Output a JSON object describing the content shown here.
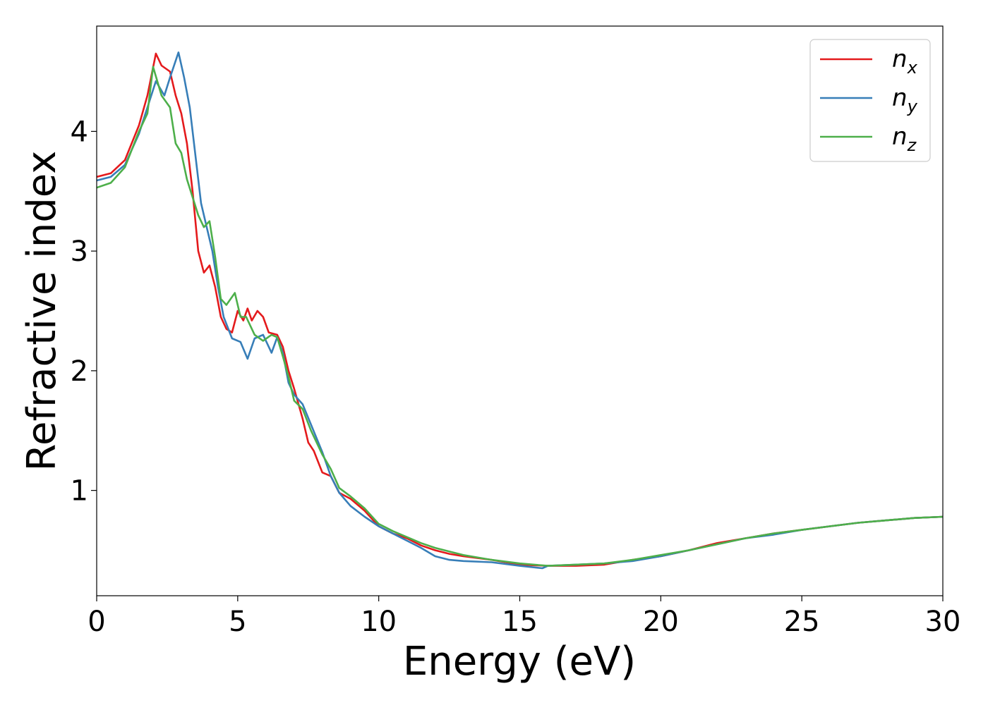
{
  "chart_data": {
    "type": "line",
    "title": "",
    "xlabel": "Energy (eV)",
    "ylabel": "Refractive index",
    "xlim": [
      0,
      30
    ],
    "ylim": [
      0.12,
      4.88
    ],
    "xticks": [
      0,
      5,
      10,
      15,
      20,
      25,
      30
    ],
    "yticks": [
      1,
      2,
      3,
      4
    ],
    "grid": false,
    "legend_position": "top-right",
    "series": [
      {
        "name": "n_x",
        "legend_base": "n",
        "legend_sub": "x",
        "color": "#e41a1c",
        "points": [
          [
            0,
            3.62
          ],
          [
            0.5,
            3.65
          ],
          [
            1.0,
            3.76
          ],
          [
            1.5,
            4.05
          ],
          [
            1.8,
            4.3
          ],
          [
            2.1,
            4.65
          ],
          [
            2.3,
            4.55
          ],
          [
            2.6,
            4.5
          ],
          [
            2.8,
            4.3
          ],
          [
            3.0,
            4.15
          ],
          [
            3.2,
            3.9
          ],
          [
            3.4,
            3.5
          ],
          [
            3.6,
            3.0
          ],
          [
            3.8,
            2.82
          ],
          [
            4.0,
            2.88
          ],
          [
            4.2,
            2.7
          ],
          [
            4.4,
            2.45
          ],
          [
            4.6,
            2.35
          ],
          [
            4.8,
            2.32
          ],
          [
            5.0,
            2.5
          ],
          [
            5.2,
            2.42
          ],
          [
            5.35,
            2.52
          ],
          [
            5.5,
            2.42
          ],
          [
            5.7,
            2.5
          ],
          [
            5.9,
            2.45
          ],
          [
            6.1,
            2.32
          ],
          [
            6.4,
            2.3
          ],
          [
            6.6,
            2.2
          ],
          [
            6.8,
            2.0
          ],
          [
            7.0,
            1.85
          ],
          [
            7.3,
            1.6
          ],
          [
            7.5,
            1.4
          ],
          [
            7.7,
            1.33
          ],
          [
            8.0,
            1.15
          ],
          [
            8.3,
            1.12
          ],
          [
            8.6,
            0.98
          ],
          [
            9.0,
            0.93
          ],
          [
            9.5,
            0.83
          ],
          [
            10.0,
            0.7
          ],
          [
            10.5,
            0.64
          ],
          [
            11,
            0.6
          ],
          [
            11.5,
            0.54
          ],
          [
            12,
            0.5
          ],
          [
            12.5,
            0.47
          ],
          [
            13,
            0.45
          ],
          [
            14,
            0.42
          ],
          [
            15,
            0.38
          ],
          [
            16,
            0.37
          ],
          [
            17,
            0.37
          ],
          [
            18,
            0.38
          ],
          [
            19,
            0.42
          ],
          [
            20,
            0.45
          ],
          [
            21,
            0.5
          ],
          [
            22,
            0.56
          ],
          [
            23,
            0.6
          ],
          [
            24,
            0.64
          ],
          [
            25,
            0.67
          ],
          [
            26,
            0.7
          ],
          [
            27,
            0.73
          ],
          [
            28,
            0.75
          ],
          [
            29,
            0.77
          ],
          [
            30,
            0.78
          ]
        ]
      },
      {
        "name": "n_y",
        "legend_base": "n",
        "legend_sub": "y",
        "color": "#377eb8",
        "points": [
          [
            0,
            3.59
          ],
          [
            0.5,
            3.62
          ],
          [
            1.0,
            3.72
          ],
          [
            1.5,
            3.98
          ],
          [
            1.8,
            4.2
          ],
          [
            2.1,
            4.42
          ],
          [
            2.4,
            4.3
          ],
          [
            2.6,
            4.45
          ],
          [
            2.9,
            4.66
          ],
          [
            3.1,
            4.45
          ],
          [
            3.3,
            4.2
          ],
          [
            3.5,
            3.8
          ],
          [
            3.7,
            3.4
          ],
          [
            3.9,
            3.2
          ],
          [
            4.1,
            3.0
          ],
          [
            4.3,
            2.7
          ],
          [
            4.5,
            2.45
          ],
          [
            4.8,
            2.27
          ],
          [
            5.1,
            2.24
          ],
          [
            5.35,
            2.1
          ],
          [
            5.6,
            2.27
          ],
          [
            5.9,
            2.3
          ],
          [
            6.2,
            2.15
          ],
          [
            6.4,
            2.28
          ],
          [
            6.6,
            2.15
          ],
          [
            6.8,
            1.9
          ],
          [
            7.0,
            1.8
          ],
          [
            7.3,
            1.72
          ],
          [
            7.6,
            1.55
          ],
          [
            8.0,
            1.32
          ],
          [
            8.3,
            1.12
          ],
          [
            8.6,
            0.98
          ],
          [
            9.0,
            0.87
          ],
          [
            9.5,
            0.78
          ],
          [
            10.0,
            0.7
          ],
          [
            10.5,
            0.64
          ],
          [
            11,
            0.58
          ],
          [
            11.5,
            0.52
          ],
          [
            12,
            0.45
          ],
          [
            12.5,
            0.42
          ],
          [
            13,
            0.41
          ],
          [
            14,
            0.4
          ],
          [
            15,
            0.37
          ],
          [
            15.8,
            0.35
          ],
          [
            16,
            0.37
          ],
          [
            17,
            0.38
          ],
          [
            18,
            0.39
          ],
          [
            19,
            0.41
          ],
          [
            20,
            0.45
          ],
          [
            21,
            0.5
          ],
          [
            22,
            0.55
          ],
          [
            23,
            0.6
          ],
          [
            24,
            0.63
          ],
          [
            25,
            0.67
          ],
          [
            26,
            0.7
          ],
          [
            27,
            0.73
          ],
          [
            28,
            0.75
          ],
          [
            29,
            0.77
          ],
          [
            30,
            0.78
          ]
        ]
      },
      {
        "name": "n_z",
        "legend_base": "n",
        "legend_sub": "z",
        "color": "#4daf4a",
        "points": [
          [
            0,
            3.53
          ],
          [
            0.5,
            3.57
          ],
          [
            1.0,
            3.7
          ],
          [
            1.5,
            4.0
          ],
          [
            1.8,
            4.15
          ],
          [
            2.0,
            4.54
          ],
          [
            2.3,
            4.3
          ],
          [
            2.6,
            4.2
          ],
          [
            2.8,
            3.9
          ],
          [
            3.0,
            3.82
          ],
          [
            3.2,
            3.6
          ],
          [
            3.4,
            3.45
          ],
          [
            3.6,
            3.3
          ],
          [
            3.8,
            3.2
          ],
          [
            4.0,
            3.25
          ],
          [
            4.2,
            2.95
          ],
          [
            4.4,
            2.6
          ],
          [
            4.6,
            2.55
          ],
          [
            4.9,
            2.65
          ],
          [
            5.1,
            2.45
          ],
          [
            5.3,
            2.45
          ],
          [
            5.6,
            2.3
          ],
          [
            5.9,
            2.25
          ],
          [
            6.2,
            2.3
          ],
          [
            6.4,
            2.28
          ],
          [
            6.6,
            2.12
          ],
          [
            6.8,
            1.95
          ],
          [
            7.0,
            1.75
          ],
          [
            7.3,
            1.68
          ],
          [
            7.6,
            1.5
          ],
          [
            8.0,
            1.3
          ],
          [
            8.3,
            1.18
          ],
          [
            8.6,
            1.02
          ],
          [
            9.0,
            0.95
          ],
          [
            9.5,
            0.85
          ],
          [
            10.0,
            0.72
          ],
          [
            10.5,
            0.66
          ],
          [
            11,
            0.61
          ],
          [
            11.5,
            0.56
          ],
          [
            12,
            0.52
          ],
          [
            12.5,
            0.49
          ],
          [
            13,
            0.46
          ],
          [
            14,
            0.42
          ],
          [
            15,
            0.39
          ],
          [
            16,
            0.37
          ],
          [
            17,
            0.38
          ],
          [
            18,
            0.39
          ],
          [
            19,
            0.42
          ],
          [
            20,
            0.46
          ],
          [
            21,
            0.5
          ],
          [
            22,
            0.55
          ],
          [
            23,
            0.6
          ],
          [
            24,
            0.64
          ],
          [
            25,
            0.67
          ],
          [
            26,
            0.7
          ],
          [
            27,
            0.73
          ],
          [
            28,
            0.75
          ],
          [
            29,
            0.77
          ],
          [
            30,
            0.78
          ]
        ]
      }
    ]
  }
}
